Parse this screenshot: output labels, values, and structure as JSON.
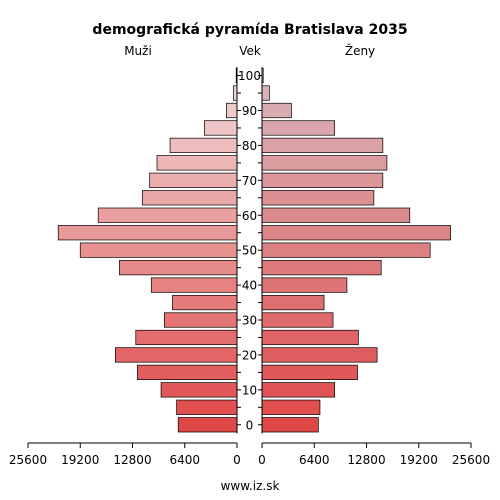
{
  "chart_data": {
    "type": "bar",
    "title": "demografická pyramída Bratislava 2035",
    "left_label": "Muži",
    "center_label": "Vek",
    "right_label": "Ženy",
    "footer": "www.iz.sk",
    "x_ticks": [
      25600,
      19200,
      12800,
      6400,
      0
    ],
    "x_range": [
      0,
      25600
    ],
    "age_ticks": [
      "0",
      "10",
      "20",
      "30",
      "40",
      "50",
      "60",
      "70",
      "80",
      "90",
      "100"
    ],
    "categories": [
      "0-4",
      "5-9",
      "10-14",
      "15-19",
      "20-24",
      "25-29",
      "30-34",
      "35-39",
      "40-44",
      "45-49",
      "50-54",
      "55-59",
      "60-64",
      "65-69",
      "70-74",
      "75-79",
      "80-84",
      "85-89",
      "90-94",
      "95-99",
      "100+"
    ],
    "series": [
      {
        "name": "Muži",
        "values": [
          7200,
          7400,
          9300,
          12200,
          14900,
          12400,
          8900,
          7900,
          10500,
          14400,
          19200,
          21900,
          17000,
          11600,
          10700,
          9800,
          8200,
          4000,
          1300,
          450,
          100
        ]
      },
      {
        "name": "Ženy",
        "values": [
          6900,
          7100,
          8900,
          11700,
          14100,
          11800,
          8700,
          7600,
          10400,
          14600,
          20600,
          23100,
          18100,
          13700,
          14800,
          15300,
          14800,
          8900,
          3600,
          900,
          150
        ]
      }
    ],
    "colors": {
      "young": "#e04848",
      "old": "#f0dada",
      "female_old": "#d8b8bc"
    }
  }
}
